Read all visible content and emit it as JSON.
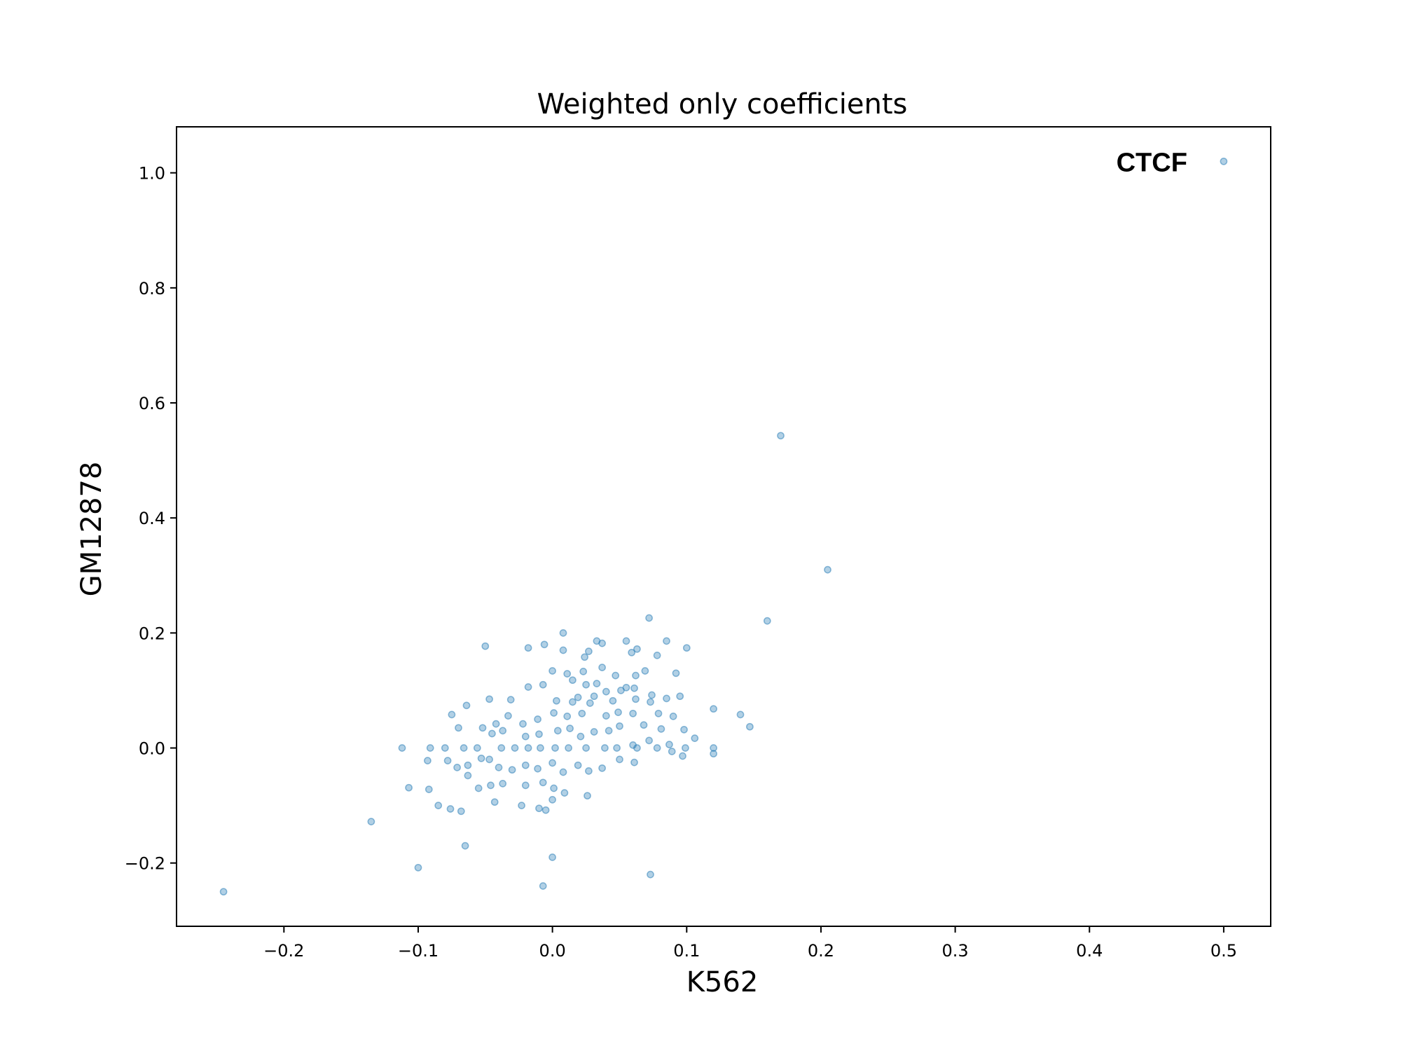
{
  "chart_data": {
    "type": "scatter",
    "title": "Weighted only coefficients",
    "xlabel": "K562",
    "ylabel": "GM12878",
    "xlim": [
      -0.28,
      0.535
    ],
    "ylim": [
      -0.31,
      1.08
    ],
    "xticks": [
      -0.2,
      -0.1,
      0.0,
      0.1,
      0.2,
      0.3,
      0.4,
      0.5
    ],
    "yticks": [
      -0.2,
      0.0,
      0.2,
      0.4,
      0.6,
      0.8,
      1.0
    ],
    "xtick_labels": [
      "−0.2",
      "−0.1",
      "0.0",
      "0.1",
      "0.2",
      "0.3",
      "0.4",
      "0.5"
    ],
    "ytick_labels": [
      "−0.2",
      "0.0",
      "0.2",
      "0.4",
      "0.6",
      "0.8",
      "1.0"
    ],
    "grid": false,
    "marker_color": "#1f77b4",
    "marker_alpha": 0.35,
    "annotations": [
      {
        "text": "CTCF",
        "x": 0.5,
        "y": 1.02
      }
    ],
    "series": [
      {
        "points": [
          [
            0.5,
            1.02
          ],
          [
            0.17,
            0.543
          ],
          [
            0.205,
            0.31
          ],
          [
            0.16,
            0.221
          ],
          [
            -0.245,
            -0.25
          ],
          [
            -0.135,
            -0.128
          ],
          [
            -0.1,
            -0.208
          ],
          [
            -0.065,
            -0.17
          ],
          [
            0.0,
            -0.19
          ],
          [
            -0.007,
            -0.24
          ],
          [
            0.073,
            -0.22
          ],
          [
            0.072,
            0.226
          ],
          [
            0.008,
            0.2
          ],
          [
            -0.05,
            0.177
          ],
          [
            -0.018,
            0.174
          ],
          [
            -0.006,
            0.18
          ],
          [
            0.008,
            0.17
          ],
          [
            0.033,
            0.186
          ],
          [
            0.037,
            0.182
          ],
          [
            0.055,
            0.186
          ],
          [
            0.085,
            0.186
          ],
          [
            0.1,
            0.174
          ],
          [
            0.063,
            0.172
          ],
          [
            0.027,
            0.168
          ],
          [
            0.059,
            0.166
          ],
          [
            0.078,
            0.161
          ],
          [
            0.024,
            0.158
          ],
          [
            0.037,
            0.14
          ],
          [
            0.0,
            0.134
          ],
          [
            0.011,
            0.129
          ],
          [
            0.023,
            0.133
          ],
          [
            0.047,
            0.126
          ],
          [
            0.069,
            0.134
          ],
          [
            0.062,
            0.126
          ],
          [
            0.092,
            0.13
          ],
          [
            0.015,
            0.118
          ],
          [
            -0.018,
            0.106
          ],
          [
            -0.007,
            0.11
          ],
          [
            0.025,
            0.11
          ],
          [
            0.033,
            0.112
          ],
          [
            0.051,
            0.1
          ],
          [
            0.055,
            0.105
          ],
          [
            0.061,
            0.104
          ],
          [
            0.04,
            0.098
          ],
          [
            0.019,
            0.088
          ],
          [
            0.031,
            0.09
          ],
          [
            0.074,
            0.092
          ],
          [
            0.095,
            0.09
          ],
          [
            0.085,
            0.086
          ],
          [
            -0.047,
            0.085
          ],
          [
            -0.031,
            0.084
          ],
          [
            -0.064,
            0.074
          ],
          [
            0.003,
            0.082
          ],
          [
            0.015,
            0.08
          ],
          [
            0.028,
            0.078
          ],
          [
            0.045,
            0.082
          ],
          [
            0.062,
            0.085
          ],
          [
            0.073,
            0.08
          ],
          [
            -0.075,
            0.058
          ],
          [
            -0.052,
            0.035
          ],
          [
            -0.042,
            0.042
          ],
          [
            -0.033,
            0.056
          ],
          [
            -0.022,
            0.042
          ],
          [
            -0.011,
            0.05
          ],
          [
            0.001,
            0.061
          ],
          [
            0.011,
            0.055
          ],
          [
            0.022,
            0.06
          ],
          [
            0.04,
            0.056
          ],
          [
            0.049,
            0.062
          ],
          [
            0.06,
            0.06
          ],
          [
            0.079,
            0.06
          ],
          [
            0.09,
            0.055
          ],
          [
            0.12,
            0.068
          ],
          [
            0.14,
            0.058
          ],
          [
            0.147,
            0.037
          ],
          [
            -0.07,
            0.035
          ],
          [
            -0.045,
            0.025
          ],
          [
            -0.037,
            0.03
          ],
          [
            -0.02,
            0.02
          ],
          [
            -0.01,
            0.024
          ],
          [
            0.004,
            0.03
          ],
          [
            0.013,
            0.034
          ],
          [
            0.021,
            0.02
          ],
          [
            0.031,
            0.028
          ],
          [
            0.042,
            0.03
          ],
          [
            0.05,
            0.038
          ],
          [
            0.068,
            0.04
          ],
          [
            0.081,
            0.033
          ],
          [
            0.098,
            0.032
          ],
          [
            0.106,
            0.017
          ],
          [
            0.072,
            0.013
          ],
          [
            0.06,
            0.005
          ],
          [
            0.087,
            0.006
          ],
          [
            0.099,
            0.0
          ],
          [
            -0.112,
            0.0
          ],
          [
            -0.091,
            0.0
          ],
          [
            -0.08,
            0.0
          ],
          [
            -0.066,
            0.0
          ],
          [
            -0.056,
            0.0
          ],
          [
            -0.038,
            0.0
          ],
          [
            -0.028,
            0.0
          ],
          [
            -0.018,
            0.0
          ],
          [
            -0.009,
            0.0
          ],
          [
            0.002,
            0.0
          ],
          [
            0.012,
            0.0
          ],
          [
            0.025,
            0.0
          ],
          [
            0.039,
            0.0
          ],
          [
            0.048,
            0.0
          ],
          [
            0.063,
            0.0
          ],
          [
            0.078,
            0.0
          ],
          [
            0.12,
            0.0
          ],
          [
            -0.093,
            -0.022
          ],
          [
            -0.078,
            -0.022
          ],
          [
            -0.071,
            -0.034
          ],
          [
            -0.063,
            -0.03
          ],
          [
            -0.053,
            -0.018
          ],
          [
            -0.047,
            -0.02
          ],
          [
            -0.04,
            -0.034
          ],
          [
            -0.03,
            -0.038
          ],
          [
            -0.02,
            -0.03
          ],
          [
            -0.011,
            -0.036
          ],
          [
            0.0,
            -0.026
          ],
          [
            0.008,
            -0.042
          ],
          [
            0.019,
            -0.03
          ],
          [
            0.027,
            -0.04
          ],
          [
            0.037,
            -0.035
          ],
          [
            0.05,
            -0.02
          ],
          [
            0.061,
            -0.025
          ],
          [
            0.089,
            -0.006
          ],
          [
            0.097,
            -0.014
          ],
          [
            0.12,
            -0.01
          ],
          [
            -0.063,
            -0.048
          ],
          [
            -0.055,
            -0.07
          ],
          [
            -0.046,
            -0.065
          ],
          [
            -0.037,
            -0.062
          ],
          [
            -0.02,
            -0.065
          ],
          [
            -0.007,
            -0.06
          ],
          [
            0.001,
            -0.07
          ],
          [
            0.009,
            -0.078
          ],
          [
            0.026,
            -0.083
          ],
          [
            -0.107,
            -0.069
          ],
          [
            -0.092,
            -0.072
          ],
          [
            -0.085,
            -0.1
          ],
          [
            -0.076,
            -0.106
          ],
          [
            -0.068,
            -0.11
          ],
          [
            -0.043,
            -0.094
          ],
          [
            -0.023,
            -0.1
          ],
          [
            -0.01,
            -0.105
          ],
          [
            -0.005,
            -0.108
          ],
          [
            0.0,
            -0.09
          ]
        ]
      }
    ]
  }
}
